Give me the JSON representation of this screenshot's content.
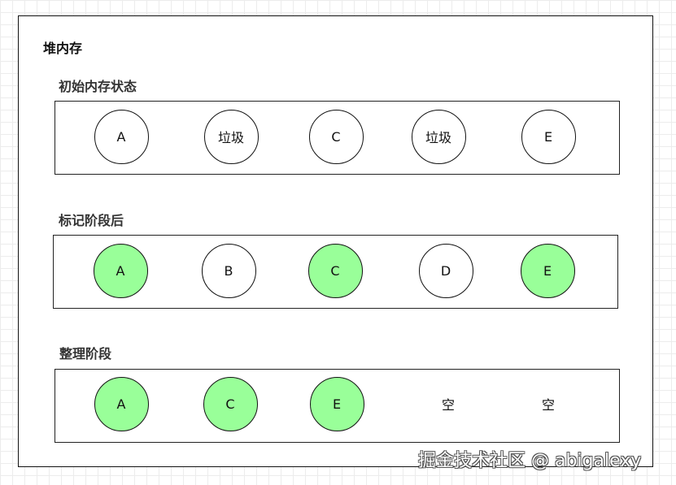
{
  "title": "堆内存",
  "colors": {
    "marked": "#99ff99",
    "unmarked": "#ffffff"
  },
  "sections": [
    {
      "label": "初始内存状态",
      "cells": [
        {
          "text": "A",
          "marked": false
        },
        {
          "text": "垃圾",
          "marked": false
        },
        {
          "text": "C",
          "marked": false
        },
        {
          "text": "垃圾",
          "marked": false
        },
        {
          "text": "E",
          "marked": false
        }
      ]
    },
    {
      "label": "标记阶段后",
      "cells": [
        {
          "text": "A",
          "marked": true
        },
        {
          "text": "B",
          "marked": false
        },
        {
          "text": "C",
          "marked": true
        },
        {
          "text": "D",
          "marked": false
        },
        {
          "text": "E",
          "marked": true
        }
      ]
    },
    {
      "label": "整理阶段",
      "cells": [
        {
          "text": "A",
          "marked": true
        },
        {
          "text": "C",
          "marked": true
        },
        {
          "text": "E",
          "marked": true
        },
        {
          "text": "空",
          "empty": true
        },
        {
          "text": "空",
          "empty": true
        }
      ]
    }
  ],
  "watermark": "掘金技术社区 @ abigalexy"
}
